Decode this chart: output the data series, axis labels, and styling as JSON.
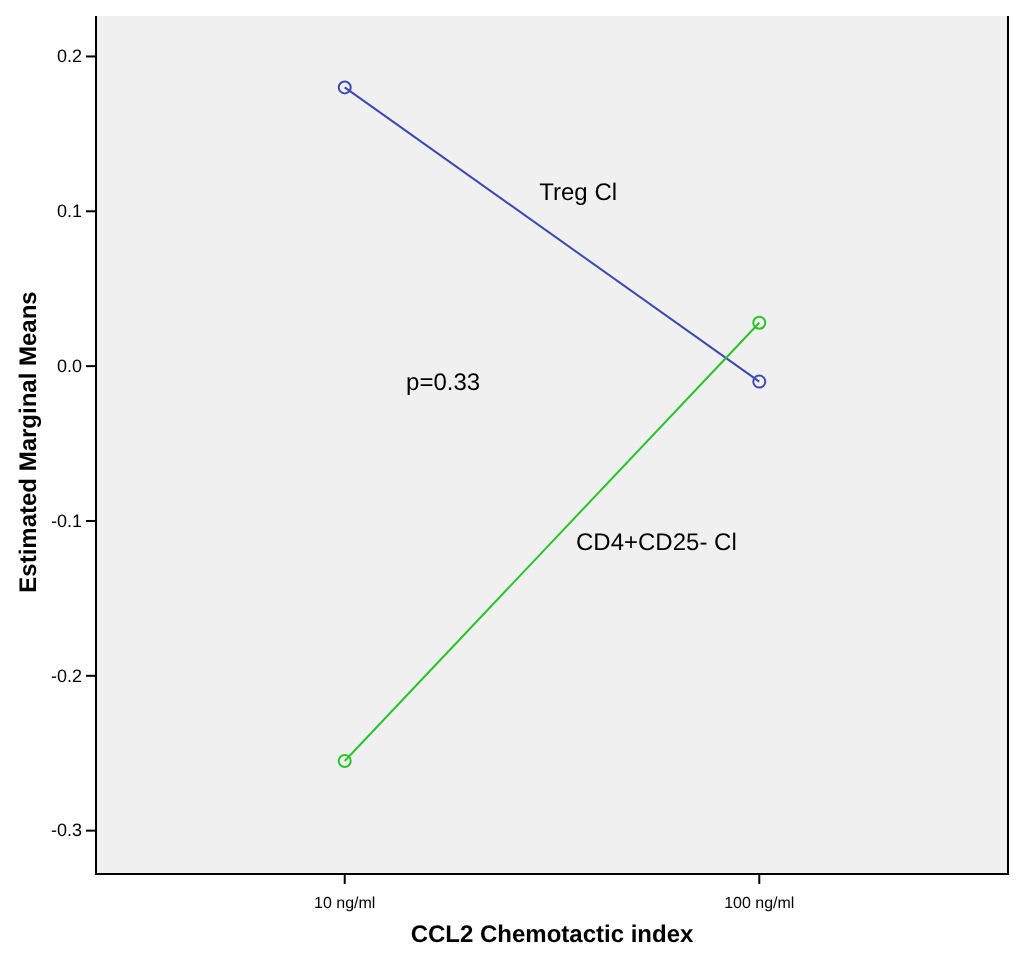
{
  "chart_data": {
    "type": "line",
    "xlabel": "CCL2 Chemotactic index",
    "ylabel": "Estimated Marginal Means",
    "categories": [
      "10 ng/ml",
      "100 ng/ml"
    ],
    "series": [
      {
        "name": "Treg Cl",
        "color": "#3f48b0",
        "values": [
          0.18,
          -0.01
        ]
      },
      {
        "name": "CD4+CD25- Cl",
        "color": "#27c42b",
        "values": [
          -0.255,
          0.028
        ]
      }
    ],
    "ylim": [
      -0.328,
      0.23
    ],
    "yticks": [
      {
        "value": -0.3,
        "label": "-0.3"
      },
      {
        "value": -0.2,
        "label": "-0.2"
      },
      {
        "value": -0.1,
        "label": "-0.1"
      },
      {
        "value": 0,
        "label": "0.0"
      },
      {
        "value": 0.1,
        "label": "0.1"
      },
      {
        "value": 0.2,
        "label": "0.2"
      }
    ],
    "annotations": [
      "p=0.33"
    ],
    "marker": "circle",
    "line_style": "solid",
    "grid": false
  }
}
